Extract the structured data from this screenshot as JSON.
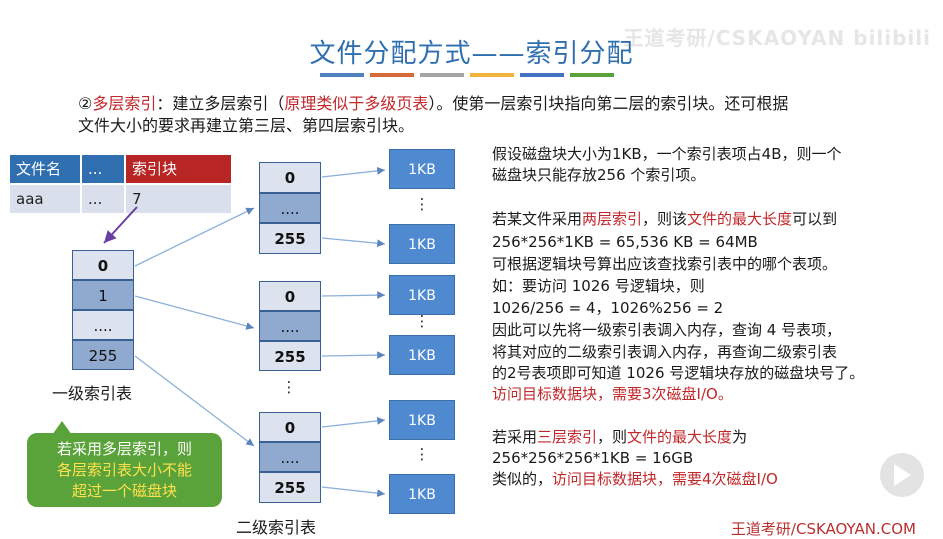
{
  "title": "文件分配方式——索引分配",
  "watermark": "王道考研/CSKAOYAN bilibili",
  "colors": {
    "accent_blue": "#2f6fb0",
    "red": "#c0282b",
    "green": "#5aa33a",
    "kb_blue": "#4f8ad0"
  },
  "title_bars": [
    "#4f81bd",
    "#d6693a",
    "#a5a5a5",
    "#f2b43c",
    "#4472c4",
    "#5aa33a"
  ],
  "intro": {
    "prefix": "②",
    "term": "多层索引",
    "text1": "：建立多层索引（",
    "note": "原理类似于多级页表",
    "text2": "）。使第一层索引块指向第二层的索引块。还可根据",
    "line2": "文件大小的要求再建立第三层、第四层索引块。"
  },
  "file_table": {
    "headers": [
      "文件名",
      "...",
      "索引块"
    ],
    "row": [
      "aaa",
      "...",
      "7"
    ]
  },
  "first_level": {
    "entries": [
      "0",
      "1",
      "....",
      "255"
    ],
    "caption": "一级索引表"
  },
  "second_level": {
    "tables": [
      {
        "entries": [
          "0",
          "....",
          "255"
        ]
      },
      {
        "entries": [
          "0",
          "....",
          "255"
        ]
      },
      {
        "entries": [
          "0",
          "....",
          "255"
        ]
      }
    ],
    "caption": "二级索引表",
    "dots": "⋮"
  },
  "blocks": {
    "label": "1KB",
    "dots": "⋮"
  },
  "callout": {
    "line1": "若采用多层索引，则",
    "line2": "各层索引表大小不能",
    "line3": "超过一个磁盘块"
  },
  "right": {
    "p1_l1": "假设磁盘块大小为1KB，一个索引表项占4B，则一个",
    "p1_l2": "磁盘块只能存放256 个索引项。",
    "p2_a": "若某文件采用",
    "p2_b": "两层索引",
    "p2_c": "，则该",
    "p2_d": "文件的最大长度",
    "p2_e": "可以到",
    "p2_l2": "256*256*1KB = 65,536 KB = 64MB",
    "p2_l3": "可根据逻辑块号算出应该查找索引表中的哪个表项。",
    "p2_l4": "如：要访问 1026 号逻辑块，则",
    "p2_l5": "1026/256 = 4，1026%256 = 2",
    "p2_l6": "因此可以先将一级索引表调入内存，查询 4 号表项，",
    "p2_l7": "将其对应的二级索引表调入内存，再查询二级索引表",
    "p2_l8": "的2号表项即可知道 1026 号逻辑块存放的磁盘块号了。",
    "p2_l9": "访问目标数据块，需要3次磁盘I/O。",
    "p3_a": "若采用",
    "p3_b": "三层索引",
    "p3_c": "，则",
    "p3_d": "文件的最大长度",
    "p3_e": "为",
    "p3_l2": "256*256*256*1KB = 16GB",
    "p3_l3a": "类似的，",
    "p3_l3b": "访问目标数据块，需要4次磁盘I/O"
  },
  "footer": "王道考研/CSKAOYAN.COM"
}
